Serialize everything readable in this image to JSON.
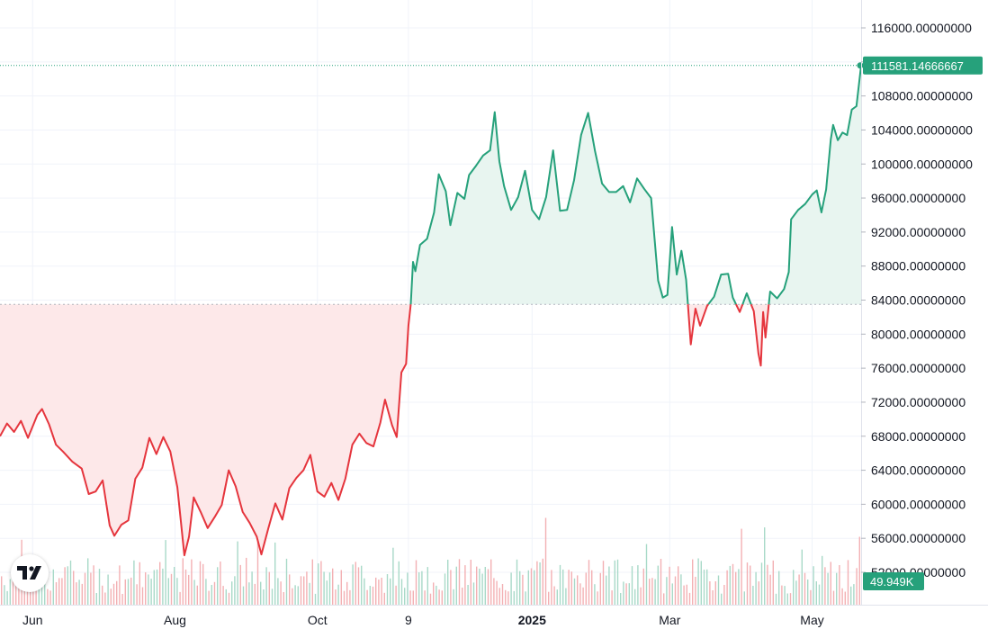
{
  "chart_data": {
    "type": "baseline",
    "baseline": 83500,
    "ylim": [
      49000,
      119000
    ],
    "y_ticks": [
      "116000.00000000",
      "112000.00000000",
      "108000.00000000",
      "104000.00000000",
      "100000.00000000",
      "96000.00000000",
      "92000.00000000",
      "88000.00000000",
      "84000.00000000",
      "80000.00000000",
      "76000.00000000",
      "72000.00000000",
      "68000.00000000",
      "64000.00000000",
      "60000.00000000",
      "56000.00000000",
      "52000.00000000"
    ],
    "y_tick_values": [
      116000,
      112000,
      108000,
      104000,
      100000,
      96000,
      92000,
      88000,
      84000,
      80000,
      76000,
      72000,
      68000,
      64000,
      60000,
      56000,
      52000
    ],
    "x_ticks": [
      "Jun",
      "Aug",
      "Oct",
      "9",
      "2025",
      "Mar",
      "May"
    ],
    "x_tick_dates": [
      "2024-06-01",
      "2024-08-01",
      "2024-10-01",
      "2024-11-09",
      "2025-01-01",
      "2025-03-01",
      "2025-05-01"
    ],
    "x_range": [
      "2024-05-18",
      "2025-05-22"
    ],
    "last_price_label": "111581.14666667",
    "last_price": 111581.14666667,
    "volume_label": "49.949K",
    "colors": {
      "up": "#26a17b",
      "down": "#e5353d",
      "up_fill": "#e8f5f0",
      "down_fill": "#fde8e9",
      "grid": "#f0f3fa"
    },
    "series": [
      {
        "x": "2024-05-18",
        "y": 68000
      },
      {
        "x": "2024-05-21",
        "y": 69500
      },
      {
        "x": "2024-05-24",
        "y": 68500
      },
      {
        "x": "2024-05-27",
        "y": 69800
      },
      {
        "x": "2024-05-30",
        "y": 67800
      },
      {
        "x": "2024-06-03",
        "y": 70500
      },
      {
        "x": "2024-06-05",
        "y": 71200
      },
      {
        "x": "2024-06-08",
        "y": 69400
      },
      {
        "x": "2024-06-11",
        "y": 67000
      },
      {
        "x": "2024-06-14",
        "y": 66200
      },
      {
        "x": "2024-06-18",
        "y": 65000
      },
      {
        "x": "2024-06-22",
        "y": 64200
      },
      {
        "x": "2024-06-25",
        "y": 61200
      },
      {
        "x": "2024-06-28",
        "y": 61500
      },
      {
        "x": "2024-07-01",
        "y": 62800
      },
      {
        "x": "2024-07-04",
        "y": 57500
      },
      {
        "x": "2024-07-06",
        "y": 56300
      },
      {
        "x": "2024-07-09",
        "y": 57600
      },
      {
        "x": "2024-07-12",
        "y": 58100
      },
      {
        "x": "2024-07-15",
        "y": 63000
      },
      {
        "x": "2024-07-18",
        "y": 64300
      },
      {
        "x": "2024-07-21",
        "y": 67800
      },
      {
        "x": "2024-07-24",
        "y": 65900
      },
      {
        "x": "2024-07-27",
        "y": 67900
      },
      {
        "x": "2024-07-30",
        "y": 66200
      },
      {
        "x": "2024-08-02",
        "y": 62000
      },
      {
        "x": "2024-08-05",
        "y": 54000
      },
      {
        "x": "2024-08-07",
        "y": 56200
      },
      {
        "x": "2024-08-09",
        "y": 60800
      },
      {
        "x": "2024-08-12",
        "y": 59100
      },
      {
        "x": "2024-08-15",
        "y": 57200
      },
      {
        "x": "2024-08-18",
        "y": 58500
      },
      {
        "x": "2024-08-21",
        "y": 59900
      },
      {
        "x": "2024-08-24",
        "y": 64000
      },
      {
        "x": "2024-08-27",
        "y": 62100
      },
      {
        "x": "2024-08-30",
        "y": 59100
      },
      {
        "x": "2024-09-02",
        "y": 57800
      },
      {
        "x": "2024-09-05",
        "y": 56200
      },
      {
        "x": "2024-09-07",
        "y": 54100
      },
      {
        "x": "2024-09-10",
        "y": 57200
      },
      {
        "x": "2024-09-13",
        "y": 60100
      },
      {
        "x": "2024-09-16",
        "y": 58200
      },
      {
        "x": "2024-09-19",
        "y": 61900
      },
      {
        "x": "2024-09-22",
        "y": 63100
      },
      {
        "x": "2024-09-25",
        "y": 64000
      },
      {
        "x": "2024-09-28",
        "y": 65800
      },
      {
        "x": "2024-10-01",
        "y": 61500
      },
      {
        "x": "2024-10-04",
        "y": 60900
      },
      {
        "x": "2024-10-07",
        "y": 62500
      },
      {
        "x": "2024-10-10",
        "y": 60500
      },
      {
        "x": "2024-10-13",
        "y": 63000
      },
      {
        "x": "2024-10-16",
        "y": 67000
      },
      {
        "x": "2024-10-19",
        "y": 68300
      },
      {
        "x": "2024-10-22",
        "y": 67200
      },
      {
        "x": "2024-10-25",
        "y": 66800
      },
      {
        "x": "2024-10-28",
        "y": 69600
      },
      {
        "x": "2024-10-30",
        "y": 72300
      },
      {
        "x": "2024-11-02",
        "y": 69300
      },
      {
        "x": "2024-11-04",
        "y": 67900
      },
      {
        "x": "2024-11-06",
        "y": 75500
      },
      {
        "x": "2024-11-08",
        "y": 76500
      },
      {
        "x": "2024-11-09",
        "y": 81000
      },
      {
        "x": "2024-11-10",
        "y": 83500
      },
      {
        "x": "2024-11-11",
        "y": 88500
      },
      {
        "x": "2024-11-12",
        "y": 87400
      },
      {
        "x": "2024-11-14",
        "y": 90500
      },
      {
        "x": "2024-11-17",
        "y": 91200
      },
      {
        "x": "2024-11-20",
        "y": 94300
      },
      {
        "x": "2024-11-22",
        "y": 98800
      },
      {
        "x": "2024-11-25",
        "y": 96800
      },
      {
        "x": "2024-11-27",
        "y": 92800
      },
      {
        "x": "2024-11-30",
        "y": 96600
      },
      {
        "x": "2024-12-03",
        "y": 95900
      },
      {
        "x": "2024-12-05",
        "y": 98700
      },
      {
        "x": "2024-12-08",
        "y": 99800
      },
      {
        "x": "2024-12-11",
        "y": 101000
      },
      {
        "x": "2024-12-14",
        "y": 101600
      },
      {
        "x": "2024-12-16",
        "y": 106100
      },
      {
        "x": "2024-12-18",
        "y": 100300
      },
      {
        "x": "2024-12-20",
        "y": 97400
      },
      {
        "x": "2024-12-23",
        "y": 94600
      },
      {
        "x": "2024-12-26",
        "y": 96100
      },
      {
        "x": "2024-12-29",
        "y": 99200
      },
      {
        "x": "2025-01-01",
        "y": 94600
      },
      {
        "x": "2025-01-04",
        "y": 93500
      },
      {
        "x": "2025-01-07",
        "y": 96100
      },
      {
        "x": "2025-01-10",
        "y": 101600
      },
      {
        "x": "2025-01-13",
        "y": 94500
      },
      {
        "x": "2025-01-16",
        "y": 94600
      },
      {
        "x": "2025-01-19",
        "y": 98100
      },
      {
        "x": "2025-01-22",
        "y": 103400
      },
      {
        "x": "2025-01-25",
        "y": 106000
      },
      {
        "x": "2025-01-28",
        "y": 101500
      },
      {
        "x": "2025-01-31",
        "y": 97700
      },
      {
        "x": "2025-02-03",
        "y": 96700
      },
      {
        "x": "2025-02-06",
        "y": 96700
      },
      {
        "x": "2025-02-09",
        "y": 97400
      },
      {
        "x": "2025-02-12",
        "y": 95500
      },
      {
        "x": "2025-02-15",
        "y": 98300
      },
      {
        "x": "2025-02-18",
        "y": 97100
      },
      {
        "x": "2025-02-21",
        "y": 96000
      },
      {
        "x": "2025-02-24",
        "y": 86300
      },
      {
        "x": "2025-02-26",
        "y": 84300
      },
      {
        "x": "2025-02-28",
        "y": 84600
      },
      {
        "x": "2025-03-02",
        "y": 92600
      },
      {
        "x": "2025-03-04",
        "y": 87000
      },
      {
        "x": "2025-03-06",
        "y": 89800
      },
      {
        "x": "2025-03-08",
        "y": 86400
      },
      {
        "x": "2025-03-10",
        "y": 78800
      },
      {
        "x": "2025-03-12",
        "y": 83000
      },
      {
        "x": "2025-03-14",
        "y": 81000
      },
      {
        "x": "2025-03-17",
        "y": 83300
      },
      {
        "x": "2025-03-20",
        "y": 84400
      },
      {
        "x": "2025-03-23",
        "y": 87000
      },
      {
        "x": "2025-03-26",
        "y": 87100
      },
      {
        "x": "2025-03-28",
        "y": 84300
      },
      {
        "x": "2025-03-31",
        "y": 82600
      },
      {
        "x": "2025-04-03",
        "y": 84800
      },
      {
        "x": "2025-04-06",
        "y": 82700
      },
      {
        "x": "2025-04-08",
        "y": 77700
      },
      {
        "x": "2025-04-09",
        "y": 76300
      },
      {
        "x": "2025-04-10",
        "y": 82600
      },
      {
        "x": "2025-04-11",
        "y": 79600
      },
      {
        "x": "2025-04-13",
        "y": 85000
      },
      {
        "x": "2025-04-16",
        "y": 84200
      },
      {
        "x": "2025-04-19",
        "y": 85300
      },
      {
        "x": "2025-04-21",
        "y": 87300
      },
      {
        "x": "2025-04-22",
        "y": 93500
      },
      {
        "x": "2025-04-25",
        "y": 94600
      },
      {
        "x": "2025-04-28",
        "y": 95300
      },
      {
        "x": "2025-05-01",
        "y": 96400
      },
      {
        "x": "2025-05-03",
        "y": 96900
      },
      {
        "x": "2025-05-05",
        "y": 94300
      },
      {
        "x": "2025-05-07",
        "y": 97000
      },
      {
        "x": "2025-05-09",
        "y": 102900
      },
      {
        "x": "2025-05-10",
        "y": 104600
      },
      {
        "x": "2025-05-12",
        "y": 102800
      },
      {
        "x": "2025-05-14",
        "y": 103700
      },
      {
        "x": "2025-05-16",
        "y": 103400
      },
      {
        "x": "2025-05-18",
        "y": 106400
      },
      {
        "x": "2025-05-20",
        "y": 106800
      },
      {
        "x": "2025-05-22",
        "y": 111581
      }
    ]
  }
}
